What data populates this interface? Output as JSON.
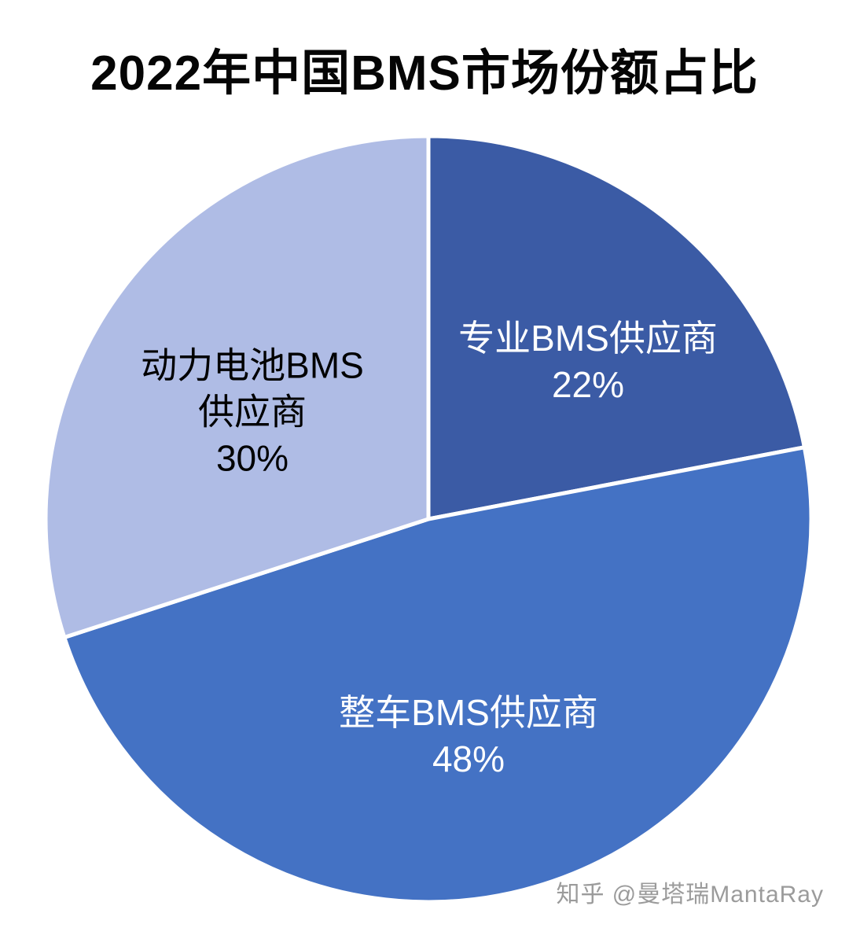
{
  "title": "2022年中国BMS市场份额占比",
  "watermark": "知乎 @曼塔瑞MantaRay",
  "chart_data": {
    "type": "pie",
    "title": "2022年中国BMS市场份额占比",
    "start_angle_deg": -90,
    "direction": "clockwise",
    "legend": "none",
    "stroke_color": "#ffffff",
    "slices": [
      {
        "label": "专业BMS供应商",
        "value": 22,
        "percent_label": "22%",
        "color": "#3B5BA5",
        "text_color": "#ffffff",
        "label_lines": [
          "专业BMS供应商",
          "22%"
        ]
      },
      {
        "label": "整车BMS供应商",
        "value": 48,
        "percent_label": "48%",
        "color": "#4472C4",
        "text_color": "#ffffff",
        "label_lines": [
          "整车BMS供应商",
          "48%"
        ]
      },
      {
        "label": "动力电池BMS供应商",
        "value": 30,
        "percent_label": "30%",
        "color": "#AFBCE5",
        "text_color": "#000000",
        "label_lines": [
          "动力电池BMS",
          "供应商",
          "30%"
        ]
      }
    ]
  }
}
